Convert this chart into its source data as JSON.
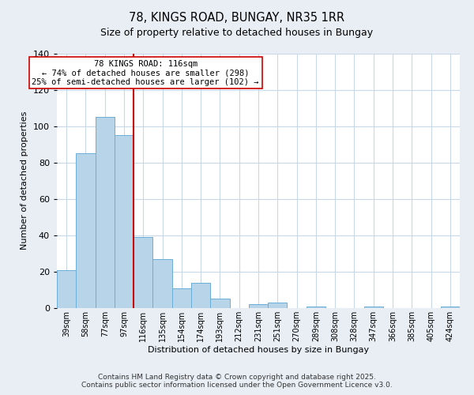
{
  "title": "78, KINGS ROAD, BUNGAY, NR35 1RR",
  "subtitle": "Size of property relative to detached houses in Bungay",
  "xlabel": "Distribution of detached houses by size in Bungay",
  "ylabel": "Number of detached properties",
  "bar_labels": [
    "39sqm",
    "58sqm",
    "77sqm",
    "97sqm",
    "116sqm",
    "135sqm",
    "154sqm",
    "174sqm",
    "193sqm",
    "212sqm",
    "231sqm",
    "251sqm",
    "270sqm",
    "289sqm",
    "308sqm",
    "328sqm",
    "347sqm",
    "366sqm",
    "385sqm",
    "405sqm",
    "424sqm"
  ],
  "bar_values": [
    21,
    85,
    105,
    95,
    39,
    27,
    11,
    14,
    5,
    0,
    2,
    3,
    0,
    1,
    0,
    0,
    1,
    0,
    0,
    0,
    1
  ],
  "bar_color": "#b8d4e8",
  "bar_edge_color": "#6aaed6",
  "vline_color": "#cc0000",
  "ylim": [
    0,
    140
  ],
  "yticks": [
    0,
    20,
    40,
    60,
    80,
    100,
    120,
    140
  ],
  "annotation_title": "78 KINGS ROAD: 116sqm",
  "annotation_line1": "← 74% of detached houses are smaller (298)",
  "annotation_line2": "25% of semi-detached houses are larger (102) →",
  "annotation_box_color": "#ffffff",
  "annotation_box_edge": "#cc0000",
  "footer1": "Contains HM Land Registry data © Crown copyright and database right 2025.",
  "footer2": "Contains public sector information licensed under the Open Government Licence v3.0.",
  "background_color": "#e8eef4",
  "plot_bg_color": "#ffffff",
  "grid_color": "#c8d8e8",
  "title_fontsize": 10.5,
  "axis_fontsize": 8,
  "tick_fontsize": 7,
  "footer_fontsize": 6.5
}
